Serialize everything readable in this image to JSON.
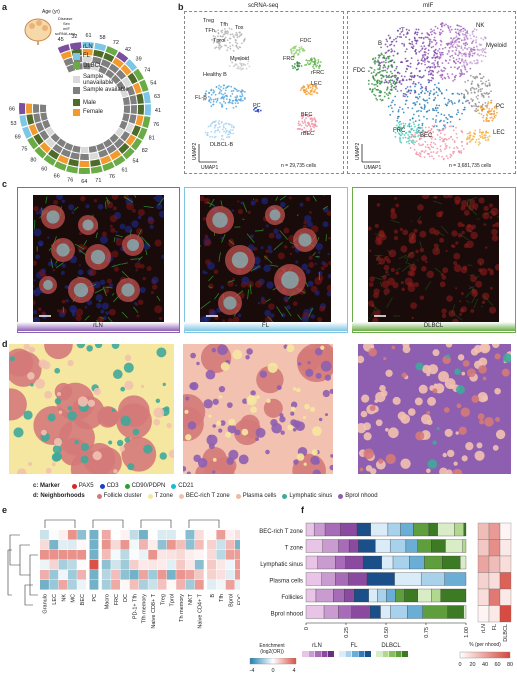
{
  "panel_a": {
    "label": "a",
    "ring_labels": [
      "Age (yr)",
      "Disease",
      "Sex",
      "mIF",
      "scRNA-seq"
    ],
    "ages_outer": [
      "45",
      "32",
      "61",
      "58",
      "72",
      "42",
      "39",
      "74",
      "54",
      "63",
      "41",
      "76",
      "81",
      "82",
      "54",
      "61",
      "76",
      "71",
      "64",
      "76",
      "66",
      "60",
      "80",
      "75",
      "69",
      "53",
      "66"
    ],
    "legend": [
      {
        "label": "rLN",
        "color": "#7b4f9e"
      },
      {
        "label": "FL",
        "color": "#7ec6e6"
      },
      {
        "label": "DLBCL",
        "color": "#6aab45"
      },
      {
        "label": "Sample unavailable",
        "color": "#d9d9d9"
      },
      {
        "label": "Sample available",
        "color": "#7f7f7f"
      },
      {
        "label": "Male",
        "color": "#4f6b2a"
      },
      {
        "label": "Female",
        "color": "#f29a30"
      }
    ]
  },
  "panel_b": {
    "label": "b",
    "left_title": "scRNA-seq",
    "right_title": "mIF",
    "left_cells": "n = 29,735 cells",
    "right_cells": "n = 3,681,735 cells",
    "axis_x": "UMAP1",
    "axis_y": "UMAP2",
    "left_clusters": [
      "Treg",
      "TFh",
      "Tfh",
      "Tox",
      "Tprol",
      "Myeloid",
      "FDC",
      "FRC",
      "rFRC",
      "Healthy B",
      "LEC",
      "FL-B",
      "PC",
      "BEC",
      "rBEC",
      "DLBCL-B"
    ],
    "right_clusters": [
      "B",
      "T",
      "NK",
      "Myeloid",
      "FDC",
      "PC",
      "LEC",
      "FRC",
      "BEC"
    ]
  },
  "panel_c": {
    "label": "c",
    "conditions": [
      {
        "name": "rLN",
        "color": "#8d5fb5"
      },
      {
        "name": "FL",
        "color": "#7ec6e6"
      },
      {
        "name": "DLBCL",
        "color": "#6aab45"
      }
    ]
  },
  "panel_d": {
    "label": "d"
  },
  "legend_cd": {
    "marker_title": "c: Marker",
    "markers": [
      {
        "label": "PAX5",
        "color": "#d62728"
      },
      {
        "label": "CD3",
        "color": "#1f3fbf"
      },
      {
        "label": "CD90/PDPN",
        "color": "#2ca02c"
      },
      {
        "label": "CD21",
        "color": "#17becf"
      }
    ],
    "nhood_title": "d: Neighborhoods",
    "neighborhoods": [
      {
        "label": "Follicle cluster",
        "color": "#d47a7a"
      },
      {
        "label": "T zone",
        "color": "#f6e7a0"
      },
      {
        "label": "BEC-rich T zone",
        "color": "#f2c1b0"
      },
      {
        "label": "Plasma cells",
        "color": "#f0b8a0"
      },
      {
        "label": "Lymphatic sinus",
        "color": "#3fa99a"
      },
      {
        "label": "Bprol nhood",
        "color": "#8e5fb0"
      }
    ]
  },
  "panel_e": {
    "label": "e",
    "columns": [
      "Granulo",
      "LEC",
      "NK",
      "MC",
      "BEC",
      "PC",
      "Macro",
      "FRC",
      "DC",
      "PD-1+ Tfh",
      "Tfh memory",
      "Naive CD8+ T",
      "Treg",
      "Tprol",
      "Th memory",
      "NKT",
      "Naive CD4+ T",
      "B",
      "Tfh",
      "Bprol",
      "FDC"
    ],
    "colorbar_title": "Enrichment (log2(OR))",
    "colorbar_ticks": [
      "-4",
      "0",
      "4"
    ]
  },
  "panel_f": {
    "label": "f",
    "rows": [
      "BEC-rich T zone",
      "T zone",
      "Lymphatic sinus",
      "Plasma cells",
      "Follicles",
      "Bprol nhood"
    ],
    "x_ticks": [
      "0",
      "0.25",
      "0.50",
      "0.75",
      "1.00"
    ],
    "heat_cols": [
      "rLN",
      "FL",
      "DLBCL"
    ],
    "legend_groups": [
      "rLN",
      "FL",
      "DLBCL"
    ],
    "pct_title": "% (per nhood)",
    "pct_ticks": [
      "0",
      "20",
      "40",
      "60",
      "80"
    ]
  }
}
